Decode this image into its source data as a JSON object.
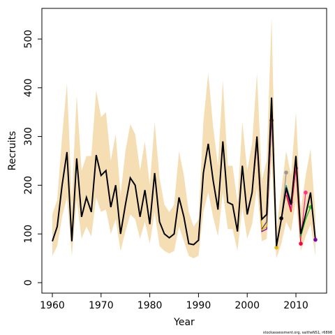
{
  "chart_data": {
    "type": "line",
    "x_label": "Year",
    "y_label": "Recruits",
    "footer": "stockassessment.org, saitheNS1, r6898",
    "xlim": [
      1957.85,
      2016.3
    ],
    "ylim": [
      -21.5,
      563
    ],
    "xticks": [
      1960,
      1970,
      1980,
      1990,
      2000,
      2010
    ],
    "yticks": [
      0,
      100,
      200,
      300,
      400,
      500
    ],
    "band": {
      "color": "#f5deb3",
      "x": [
        1960,
        1961,
        1962,
        1963,
        1964,
        1965,
        1966,
        1967,
        1968,
        1969,
        1970,
        1971,
        1972,
        1973,
        1974,
        1975,
        1976,
        1977,
        1978,
        1979,
        1980,
        1981,
        1982,
        1983,
        1984,
        1985,
        1986,
        1987,
        1988,
        1989,
        1990,
        1991,
        1992,
        1993,
        1994,
        1995,
        1996,
        1997,
        1998,
        1999,
        2000,
        2001,
        2002,
        2003,
        2004,
        2005,
        2006,
        2007,
        2008,
        2009,
        2010,
        2011,
        2012,
        2013,
        2014
      ],
      "upper": [
        140,
        170,
        300,
        410,
        170,
        385,
        230,
        260,
        260,
        395,
        340,
        350,
        250,
        305,
        180,
        270,
        325,
        305,
        230,
        290,
        200,
        330,
        215,
        160,
        145,
        160,
        270,
        220,
        145,
        115,
        130,
        330,
        430,
        320,
        240,
        415,
        240,
        240,
        165,
        330,
        230,
        285,
        430,
        210,
        250,
        545,
        110,
        190,
        270,
        220,
        350,
        150,
        220,
        275,
        140
      ],
      "lower": [
        55,
        75,
        135,
        175,
        55,
        170,
        90,
        115,
        95,
        175,
        145,
        150,
        100,
        130,
        65,
        105,
        140,
        130,
        90,
        125,
        80,
        145,
        75,
        65,
        60,
        65,
        115,
        85,
        55,
        50,
        55,
        145,
        185,
        135,
        95,
        185,
        110,
        110,
        65,
        155,
        90,
        120,
        195,
        85,
        90,
        250,
        50,
        80,
        125,
        105,
        170,
        65,
        95,
        120,
        55
      ]
    },
    "series": [
      {
        "color": "#7b00b0",
        "point_color": "#7b00b0",
        "x": [
          2000,
          2001,
          2002,
          2003,
          2004,
          2005
        ],
        "values": [
          145,
          185,
          285,
          105,
          110,
          333
        ]
      },
      {
        "color": "#e6b800",
        "point_color": "#e6b800",
        "x": [
          2000,
          2001,
          2002,
          2003,
          2004,
          2005,
          2006
        ],
        "values": [
          140,
          182,
          290,
          108,
          115,
          360,
          72
        ]
      },
      {
        "color": "#444444",
        "point_color": "#000000",
        "x": [
          2003,
          2004,
          2005,
          2006,
          2007
        ],
        "values": [
          110,
          125,
          375,
          75,
          132
        ]
      },
      {
        "color": "#999999",
        "point_color": "#999999",
        "x": [
          2005,
          2006,
          2007,
          2008
        ],
        "values": [
          378,
          78,
          128,
          226
        ]
      },
      {
        "color": "#00a0a0",
        "point_color": "#00b0d0",
        "x": [
          2006,
          2007,
          2008,
          2009
        ],
        "values": [
          76,
          130,
          200,
          165
        ]
      },
      {
        "color": "#c000c0",
        "point_color": "#d000d0",
        "x": [
          2007,
          2008,
          2009,
          2010
        ],
        "values": [
          128,
          190,
          150,
          235
        ]
      },
      {
        "color": "#e00000",
        "point_color": "#ff0040",
        "x": [
          2008,
          2009,
          2010,
          2011
        ],
        "values": [
          180,
          145,
          238,
          80
        ]
      },
      {
        "color": "#ff3090",
        "point_color": "#ff3090",
        "x": [
          2009,
          2010,
          2011,
          2012
        ],
        "values": [
          150,
          245,
          90,
          185
        ]
      },
      {
        "color": "#20b020",
        "point_color": "#30c030",
        "x": [
          2010,
          2011,
          2012,
          2013
        ],
        "values": [
          250,
          95,
          130,
          155
        ]
      },
      {
        "color": "#000000",
        "point_color": "#7b00b0",
        "x": [
          1960,
          1961,
          1962,
          1963,
          1964,
          1965,
          1966,
          1967,
          1968,
          1969,
          1970,
          1971,
          1972,
          1973,
          1974,
          1975,
          1976,
          1977,
          1978,
          1979,
          1980,
          1981,
          1982,
          1983,
          1984,
          1985,
          1986,
          1987,
          1988,
          1989,
          1990,
          1991,
          1992,
          1993,
          1994,
          1995,
          1996,
          1997,
          1998,
          1999,
          2000,
          2001,
          2002,
          2003,
          2004,
          2005,
          2006,
          2007,
          2008,
          2009,
          2010,
          2011,
          2012,
          2013,
          2014
        ],
        "values": [
          85,
          115,
          200,
          268,
          85,
          255,
          135,
          175,
          145,
          262,
          220,
          230,
          155,
          200,
          100,
          160,
          215,
          200,
          135,
          190,
          120,
          225,
          125,
          100,
          92,
          100,
          175,
          135,
          80,
          78,
          87,
          225,
          285,
          210,
          150,
          290,
          165,
          160,
          105,
          240,
          140,
          185,
          300,
          130,
          140,
          380,
          75,
          130,
          195,
          160,
          260,
          100,
          140,
          185,
          88
        ]
      }
    ]
  }
}
